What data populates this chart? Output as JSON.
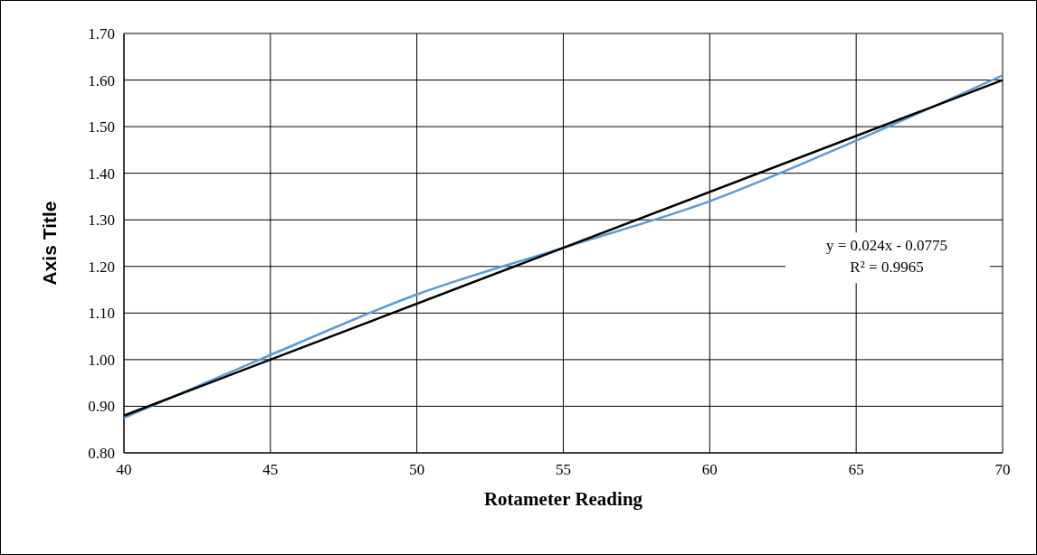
{
  "chart_data": {
    "type": "line",
    "xlabel": "Rotameter Reading",
    "ylabel": "Axis Title",
    "x": [
      40,
      45,
      50,
      55,
      60,
      65,
      70
    ],
    "series": [
      {
        "color": "#5b9bd5",
        "values": [
          0.875,
          1.01,
          1.14,
          1.24,
          1.34,
          1.47,
          1.61
        ]
      },
      {
        "type": "line",
        "color": "#000000",
        "x": [
          40,
          70
        ],
        "values": [
          0.88,
          1.6
        ]
      }
    ],
    "xlim": [
      40,
      70
    ],
    "xticks": [
      40,
      45,
      50,
      55,
      60,
      65,
      70
    ],
    "ylim": [
      0.8,
      1.7
    ],
    "yticks": [
      {
        "value": 0.8,
        "label": "0.80"
      },
      {
        "value": 0.9,
        "label": "0.90"
      },
      {
        "value": 1.0,
        "label": "1.00"
      },
      {
        "value": 1.1,
        "label": "1.10"
      },
      {
        "value": 1.2,
        "label": "1.20"
      },
      {
        "value": 1.3,
        "label": "1.30"
      },
      {
        "value": 1.4,
        "label": "1.40"
      },
      {
        "value": 1.5,
        "label": "1.50"
      },
      {
        "value": 1.6,
        "label": "1.60"
      },
      {
        "value": 1.7,
        "label": "1.70"
      }
    ],
    "grid": true,
    "marker": "none",
    "line_style": "solid",
    "annotations": [
      "y = 0.024x - 0.0775",
      "R² = 0.9965"
    ]
  }
}
